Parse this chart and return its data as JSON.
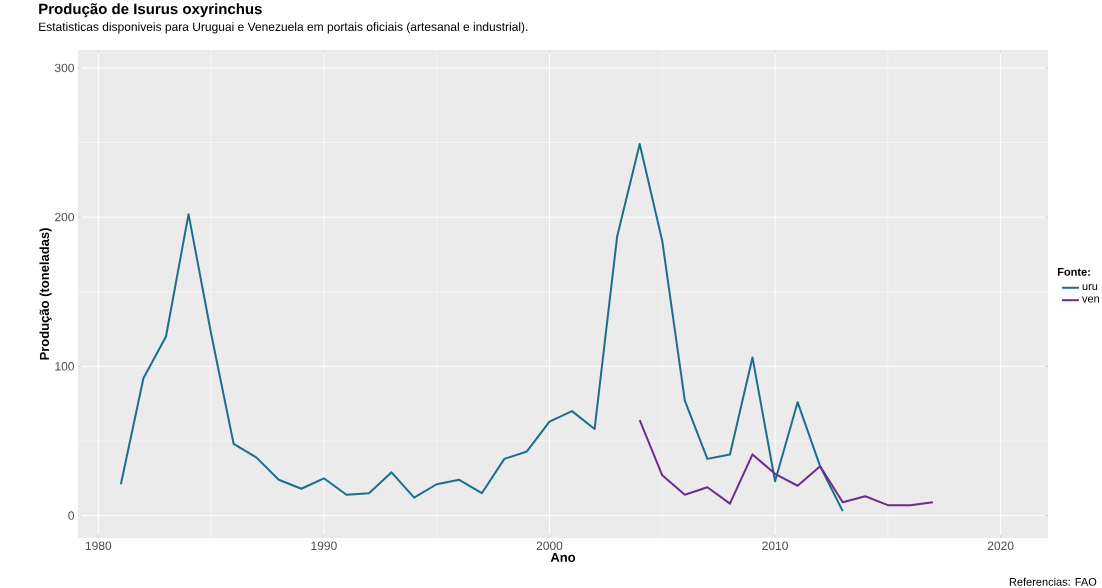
{
  "chart_data": {
    "type": "line",
    "title": "Produção de Isurus oxyrinchus",
    "subtitle": "Estatisticas disponiveis para Uruguai e Venezuela em portais oficiais (artesanal e industrial).",
    "xlabel": "Ano",
    "ylabel": "Produção (toneladas)",
    "legend_title": "Fonte:",
    "annotations": [
      "Referencias: FAO"
    ],
    "series": [
      {
        "name": "uru",
        "color": "#1b6f8c",
        "x": [
          1981,
          1982,
          1983,
          1984,
          1985,
          1986,
          1987,
          1988,
          1989,
          1990,
          1991,
          1992,
          1993,
          1994,
          1995,
          1996,
          1997,
          1998,
          1999,
          2000,
          2001,
          2002,
          2003,
          2004,
          2005,
          2006,
          2007,
          2008,
          2009,
          2010,
          2011,
          2012,
          2013
        ],
        "values": [
          21,
          92,
          120,
          202,
          122,
          48,
          39,
          24,
          18,
          25,
          14,
          15,
          29,
          12,
          21,
          24,
          15,
          38,
          43,
          63,
          70,
          58,
          187,
          249,
          184,
          77,
          38,
          41,
          106,
          23,
          76,
          33,
          3
        ]
      },
      {
        "name": "ven",
        "color": "#6b2d8f",
        "x": [
          2004,
          2005,
          2006,
          2007,
          2008,
          2009,
          2010,
          2011,
          2012,
          2013,
          2014,
          2015,
          2016,
          2017
        ],
        "values": [
          64,
          27,
          14,
          19,
          8,
          41,
          28,
          20,
          33,
          9,
          13,
          7,
          7,
          9
        ]
      }
    ],
    "xlim": [
      1979.1,
      2022.1
    ],
    "ylim": [
      -15,
      312
    ],
    "xticks": [
      1980,
      1990,
      2000,
      2010,
      2020
    ],
    "yticks": [
      0,
      100,
      200,
      300
    ],
    "grid": true,
    "legend": "right",
    "line_style": "solid",
    "marker": "none"
  }
}
